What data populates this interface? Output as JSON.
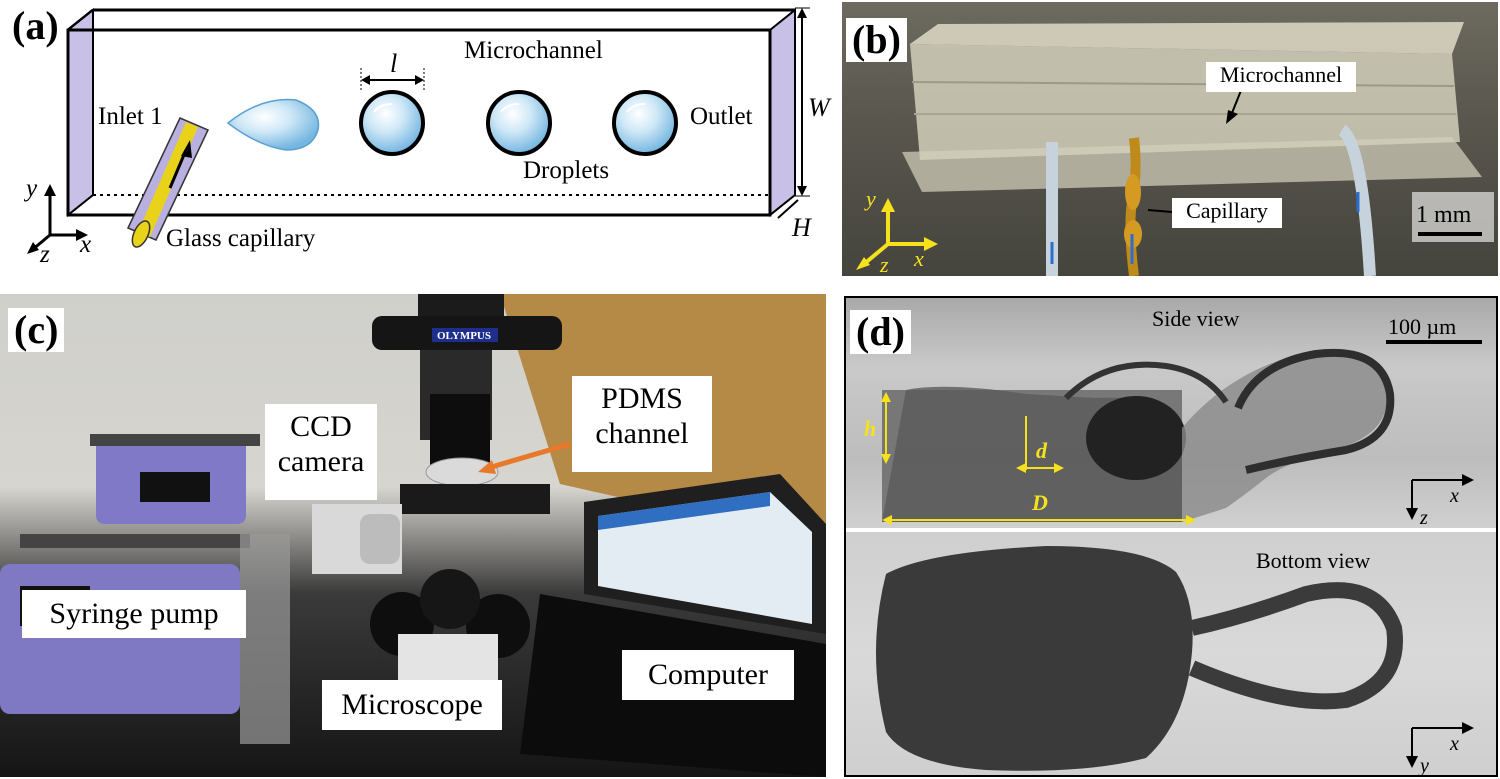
{
  "figure": {
    "panel_a": {
      "letter": "(a)",
      "microchannel": "Microchannel",
      "inlet": "Inlet 1",
      "outlet": "Outlet",
      "droplets": "Droplets",
      "capillary": "Glass capillary",
      "dim_l": "l",
      "dim_W": "W",
      "dim_H": "H",
      "axis_x": "x",
      "axis_y": "y",
      "axis_z": "z"
    },
    "panel_b": {
      "letter": "(b)",
      "microchannel": "Microchannel",
      "capillary": "Capillary",
      "scale": "1 mm",
      "axis_x": "x",
      "axis_y": "y",
      "axis_z": "z"
    },
    "panel_c": {
      "letter": "(c)",
      "ccd_line1": "CCD",
      "ccd_line2": "camera",
      "pdms_line1": "PDMS",
      "pdms_line2": "channel",
      "syringe": "Syringe pump",
      "microscope": "Microscope",
      "computer": "Computer",
      "brand": "OLYMPUS"
    },
    "panel_d": {
      "letter": "(d)",
      "side_view": "Side view",
      "bottom_view": "Bottom view",
      "scale": "100 µm",
      "dim_h": "h",
      "dim_d": "d",
      "dim_D": "D",
      "axis_x_top": "x",
      "axis_z_top": "z",
      "axis_x_bottom": "x",
      "axis_y_bottom": "y"
    }
  },
  "colors": {
    "capillary_yellow": "#e8d21a",
    "channel_side": "#c9c0e8",
    "annotation_yellow": "#f5e21c",
    "arrow_orange": "#e8782a",
    "flow_blue": "#2a6fd0"
  }
}
